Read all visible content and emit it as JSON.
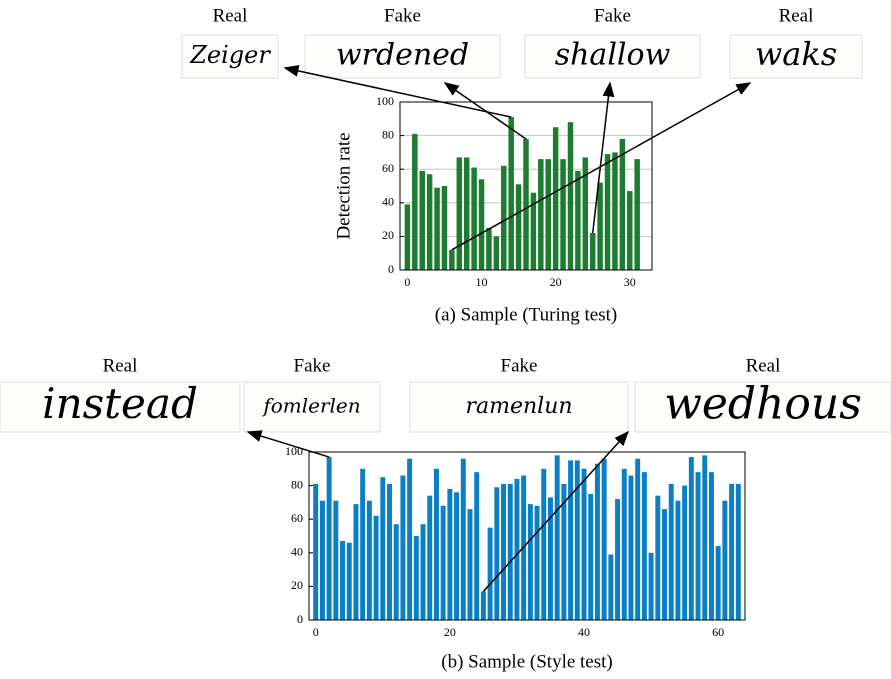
{
  "chart_data": [
    {
      "type": "bar",
      "ylabel": "Detection rate",
      "caption": "(a) Sample (Turing test)",
      "color": "#1e7b32",
      "grid": true,
      "x": [
        0,
        1,
        2,
        3,
        4,
        5,
        6,
        7,
        8,
        9,
        10,
        11,
        12,
        13,
        14,
        15,
        16,
        17,
        18,
        19,
        20,
        21,
        22,
        23,
        24,
        25,
        26,
        27,
        28,
        29,
        30,
        31
      ],
      "values": [
        39,
        81,
        59,
        57,
        49,
        50,
        12,
        67,
        67,
        61,
        54,
        25,
        20,
        62,
        91,
        51,
        78,
        46,
        66,
        66,
        85,
        66,
        88,
        59,
        67,
        22,
        52,
        69,
        70,
        78,
        47,
        66
      ],
      "xlim": [
        -1,
        33
      ],
      "xticks": [
        0,
        10,
        20,
        30
      ],
      "ylim": [
        0,
        100
      ],
      "yticks": [
        0,
        20,
        40,
        60,
        80,
        100
      ],
      "samples": [
        {
          "label": "Real",
          "word": "Zeiger"
        },
        {
          "label": "Fake",
          "word": "wrdened"
        },
        {
          "label": "Fake",
          "word": "shallow"
        },
        {
          "label": "Real",
          "word": "waks"
        }
      ]
    },
    {
      "type": "bar",
      "caption": "(b) Sample (Style test)",
      "color": "#0a7fc4",
      "grid": false,
      "x": [
        0,
        1,
        2,
        3,
        4,
        5,
        6,
        7,
        8,
        9,
        10,
        11,
        12,
        13,
        14,
        15,
        16,
        17,
        18,
        19,
        20,
        21,
        22,
        23,
        24,
        25,
        26,
        27,
        28,
        29,
        30,
        31,
        32,
        33,
        34,
        35,
        36,
        37,
        38,
        39,
        40,
        41,
        42,
        43,
        44,
        45,
        46,
        47,
        48,
        49,
        50,
        51,
        52,
        53,
        54,
        55,
        56,
        57,
        58,
        59,
        60,
        61,
        62,
        63
      ],
      "values": [
        81,
        71,
        97,
        71,
        47,
        46,
        69,
        90,
        71,
        62,
        85,
        81,
        57,
        86,
        96,
        50,
        57,
        74,
        90,
        68,
        78,
        76,
        96,
        66,
        88,
        17,
        55,
        79,
        81,
        81,
        84,
        86,
        69,
        68,
        90,
        73,
        98,
        81,
        95,
        95,
        90,
        75,
        93,
        96,
        39,
        72,
        90,
        86,
        96,
        88,
        40,
        74,
        66,
        81,
        71,
        80,
        97,
        88,
        98,
        88,
        44,
        71,
        81,
        81
      ],
      "xlim": [
        -1,
        64
      ],
      "xticks": [
        0,
        20,
        40,
        60
      ],
      "ylim": [
        0,
        100
      ],
      "yticks": [
        0,
        20,
        40,
        60,
        80,
        100
      ],
      "samples": [
        {
          "label": "Real",
          "word": "instead"
        },
        {
          "label": "Fake",
          "word": "fomlerlen"
        },
        {
          "label": "Fake",
          "word": "ramenlun"
        },
        {
          "label": "Real",
          "word": "wedhous"
        }
      ]
    }
  ]
}
